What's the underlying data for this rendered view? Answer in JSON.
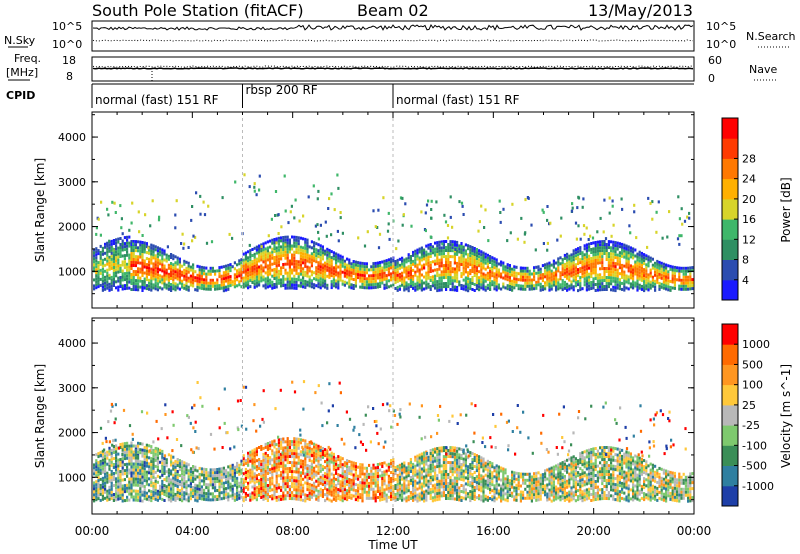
{
  "header": {
    "station": "South Pole Station (fitACF)",
    "beam": "Beam 02",
    "date": "13/May/2013"
  },
  "top_panels": {
    "nsky_label": "N.Sky",
    "nsky_ticks": [
      "10^5",
      "10^0"
    ],
    "nsearch_label": "N.Search",
    "freq_label_1": "Freq.",
    "freq_label_2": "[MHz]",
    "freq_ticks": [
      "18",
      "8"
    ],
    "nave_label": "Nave",
    "nave_ticks": [
      "60",
      "0"
    ],
    "cpid_label": "CPID"
  },
  "cpid_segments": [
    {
      "label": "normal (fast) 151 RF",
      "start": 0,
      "end": 6
    },
    {
      "label": "rbsp 200 RF",
      "start": 6,
      "end": 12
    },
    {
      "label": "normal (fast) 151 RF",
      "start": 12,
      "end": 24
    }
  ],
  "chart_data": [
    {
      "type": "heatmap",
      "name": "power-panel",
      "ylabel": "Slant Range [km]",
      "ylim": [
        180,
        4560
      ],
      "yticks": [
        1000,
        2000,
        3000,
        4000
      ],
      "xlim": [
        0,
        24
      ],
      "colorbar": {
        "label": "Power [dB]",
        "levels": [
          "4",
          "8",
          "12",
          "16",
          "20",
          "24",
          "28"
        ],
        "colors": [
          "#1a1aff",
          "#2b4cb0",
          "#2f8f63",
          "#3fb76a",
          "#d7d42a",
          "#ffb000",
          "#ff7800",
          "#ff3a00",
          "#ff0000"
        ]
      },
      "bands": [
        {
          "t0": 0.0,
          "t1": 1.5,
          "lo": 600,
          "hi": 1500,
          "level": 0.55
        },
        {
          "t0": 1.5,
          "t1": 6.0,
          "lo": 600,
          "hi": 1400,
          "level": 0.95
        },
        {
          "t0": 6.0,
          "t1": 12.0,
          "lo": 650,
          "hi": 1500,
          "level": 0.9
        },
        {
          "t0": 12.0,
          "t1": 24.0,
          "lo": 600,
          "hi": 1400,
          "level": 0.85
        }
      ]
    },
    {
      "type": "heatmap",
      "name": "velocity-panel",
      "ylabel": "Slant Range [km]",
      "ylim": [
        180,
        4560
      ],
      "yticks": [
        1000,
        2000,
        3000,
        4000
      ],
      "xlim": [
        0,
        24
      ],
      "xticks": [
        "00:00",
        "04:00",
        "08:00",
        "12:00",
        "16:00",
        "20:00",
        "00:00"
      ],
      "xlabel": "Time UT",
      "colorbar": {
        "label": "Velocity [m s^-1]",
        "levels": [
          "1000",
          "500",
          "100",
          "25",
          "-25",
          "-100",
          "-500",
          "-1000"
        ],
        "colors": [
          "#1e3fa8",
          "#2f7fa0",
          "#3a8e57",
          "#7ec96e",
          "#b8b8b8",
          "#ffc83a",
          "#ff9620",
          "#ff6a00",
          "#ff0000"
        ]
      },
      "bands": [
        {
          "t0": 0.0,
          "t1": 6.0,
          "lo": 500,
          "hi": 1500,
          "level": 0.35
        },
        {
          "t0": 6.0,
          "t1": 12.0,
          "lo": 500,
          "hi": 1600,
          "level": 0.7
        },
        {
          "t0": 12.0,
          "t1": 24.0,
          "lo": 500,
          "hi": 1400,
          "level": 0.45
        }
      ]
    }
  ]
}
